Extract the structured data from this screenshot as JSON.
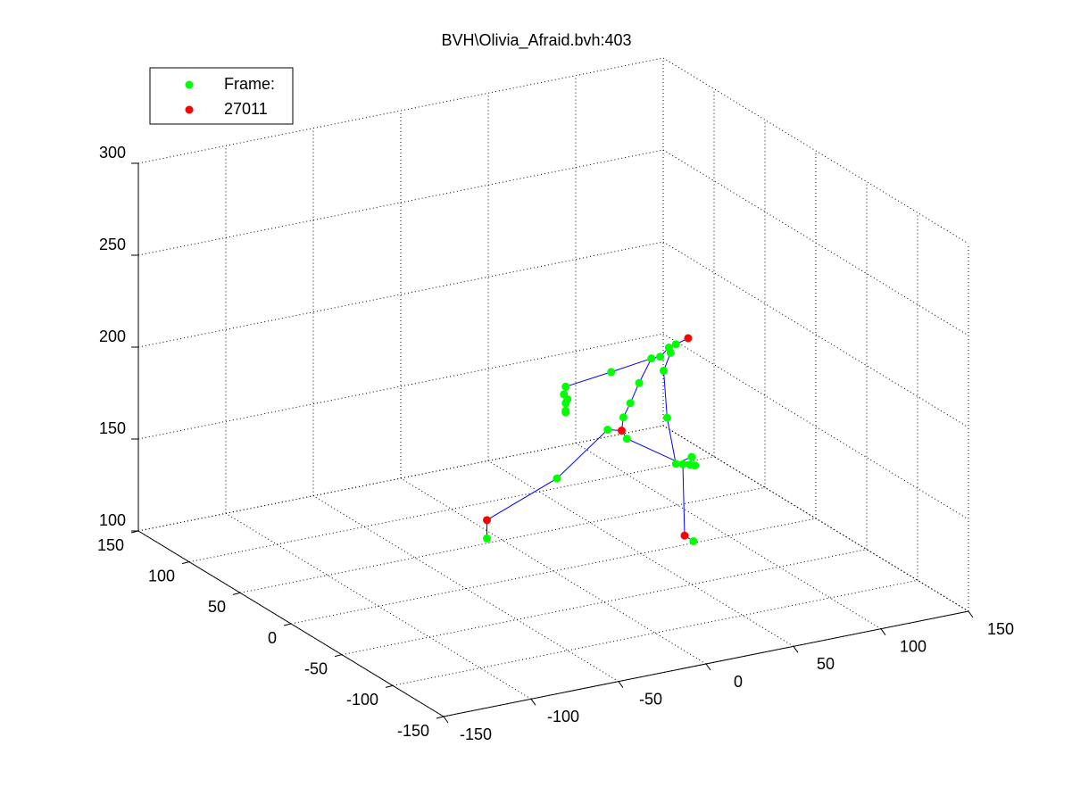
{
  "chart_data": {
    "type": "scatter3d",
    "title": "BVH\\Olivia_Afraid.bvh:403",
    "xlim": [
      -150,
      150
    ],
    "ylim": [
      -150,
      150
    ],
    "zlim": [
      100,
      300
    ],
    "xticks": [
      -150,
      -100,
      -50,
      0,
      50,
      100,
      150
    ],
    "yticks": [
      -150,
      -100,
      -50,
      0,
      50,
      100,
      150
    ],
    "zticks": [
      100,
      150,
      200,
      250,
      300
    ],
    "grid": true,
    "legend": "northwest",
    "series": [
      {
        "name": "Frame:",
        "color": "#00ff00",
        "x": [
          -38,
          80,
          2,
          31,
          42,
          40,
          44,
          49,
          33,
          56,
          61,
          66,
          70,
          67,
          63,
          65,
          70,
          74,
          79,
          81,
          78,
          7,
          6,
          7,
          7,
          7,
          8
        ],
        "y": [
          0,
          0,
          0,
          0,
          0,
          0,
          0,
          0,
          0,
          0,
          0,
          0,
          0,
          0,
          0,
          0,
          0,
          0,
          0,
          0,
          0,
          0,
          0,
          0,
          0,
          0,
          0
        ],
        "z": [
          125,
          101,
          150,
          171,
          164,
          176,
          183,
          193,
          202,
          205,
          205,
          209,
          210,
          206,
          197,
          171,
          145,
          144,
          147,
          142,
          143,
          199,
          195,
          190,
          186,
          185,
          192
        ]
      },
      {
        "name": "27011",
        "color": "#ff0000",
        "x": [
          -38,
          75,
          39,
          77
        ],
        "y": [
          0,
          0,
          0,
          0
        ],
        "z": [
          135,
          105,
          169,
          212
        ]
      }
    ],
    "skeleton": {
      "color": "#0000ff",
      "x": [
        -38,
        -38,
        2,
        31,
        39,
        42,
        74,
        75,
        80,
        null,
        39,
        40,
        44,
        49,
        56,
        61,
        66,
        70,
        77,
        null,
        56,
        33,
        7,
        7,
        null,
        67,
        63,
        65,
        70,
        79
      ],
      "y": [
        0,
        0,
        0,
        0,
        0,
        0,
        0,
        0,
        0,
        null,
        0,
        0,
        0,
        0,
        0,
        0,
        0,
        0,
        0,
        null,
        0,
        0,
        0,
        0,
        null,
        0,
        0,
        0,
        0,
        0
      ],
      "z": [
        125,
        135,
        150,
        171,
        169,
        164,
        144,
        105,
        101,
        null,
        169,
        176,
        183,
        193,
        205,
        205,
        209,
        210,
        212,
        null,
        205,
        202,
        199,
        185,
        null,
        206,
        197,
        171,
        145,
        147
      ]
    }
  }
}
